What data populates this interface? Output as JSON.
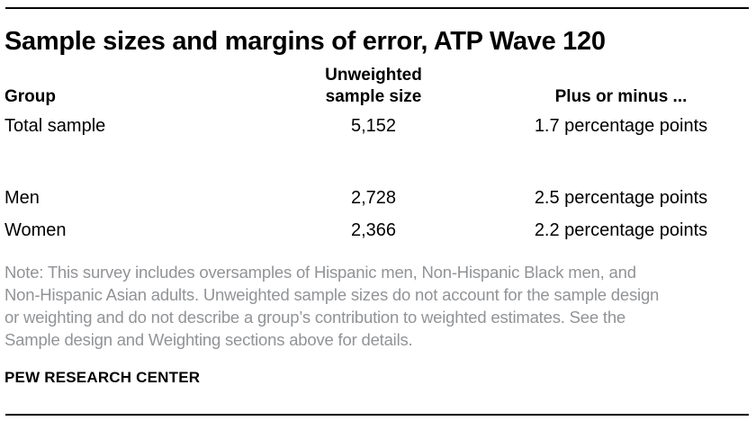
{
  "chart_data": {
    "type": "table",
    "title": "Sample sizes and margins of error, ATP Wave 120",
    "columns": [
      {
        "label": "Group"
      },
      {
        "label": "Unweighted sample size"
      },
      {
        "label": "Plus or minus ..."
      }
    ],
    "rows": [
      {
        "group": "Total sample",
        "unweighted_sample_size": "5,152",
        "plus_or_minus": "1.7 percentage points"
      },
      {
        "group": "Men",
        "unweighted_sample_size": "2,728",
        "plus_or_minus": "2.5 percentage points"
      },
      {
        "group": "Women",
        "unweighted_sample_size": "2,366",
        "plus_or_minus": "2.2 percentage points"
      }
    ],
    "layout": {
      "column_alignment": [
        "left",
        "center",
        "center"
      ],
      "blank_row_after": "Total sample",
      "grid": "off",
      "top_and_bottom_rules": true
    }
  },
  "note": {
    "lines": [
      "Note: This survey includes oversamples of Hispanic men, Non-Hispanic Black men, and",
      "Non-Hispanic Asian adults. Unweighted sample sizes do not account for the sample design",
      "or weighting and do not describe a group’s contribution to weighted estimates. See the",
      "Sample design and Weighting sections above for details."
    ]
  },
  "source": "PEW RESEARCH CENTER",
  "colors": {
    "text": "#000000",
    "note_gray": "#919396",
    "rule": "#000000",
    "background": "#ffffff"
  }
}
